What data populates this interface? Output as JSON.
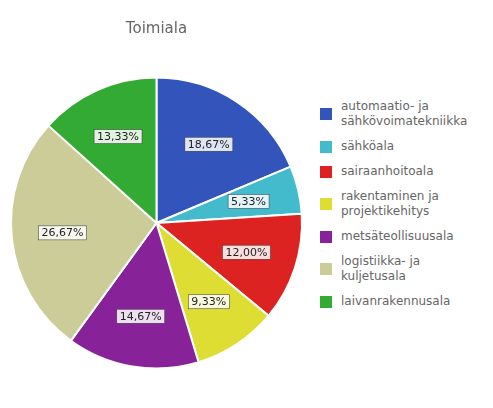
{
  "chart_data": {
    "type": "pie",
    "title": "Toimiala",
    "categories": [
      "automaatio- ja\nsähkövoimatekniikka",
      "sähköala",
      "sairaanhoitoala",
      "rakentaminen ja\nprojektikehitys",
      "metsäteollisuusala",
      "logistiikka- ja\nkuljetusala",
      "laivanrakennusala"
    ],
    "values": [
      18.67,
      5.33,
      12.0,
      9.33,
      14.67,
      26.67,
      13.33
    ],
    "value_labels": [
      "18,67%",
      "5,33%",
      "12,00%",
      "9,33%",
      "14,67%",
      "26,67%",
      "13,33%"
    ],
    "colors": [
      "#3355bb",
      "#44bbcc",
      "#dd2222",
      "#dddd33",
      "#882299",
      "#cccc99",
      "#33aa33"
    ],
    "data_labels": true,
    "legend": "right"
  }
}
